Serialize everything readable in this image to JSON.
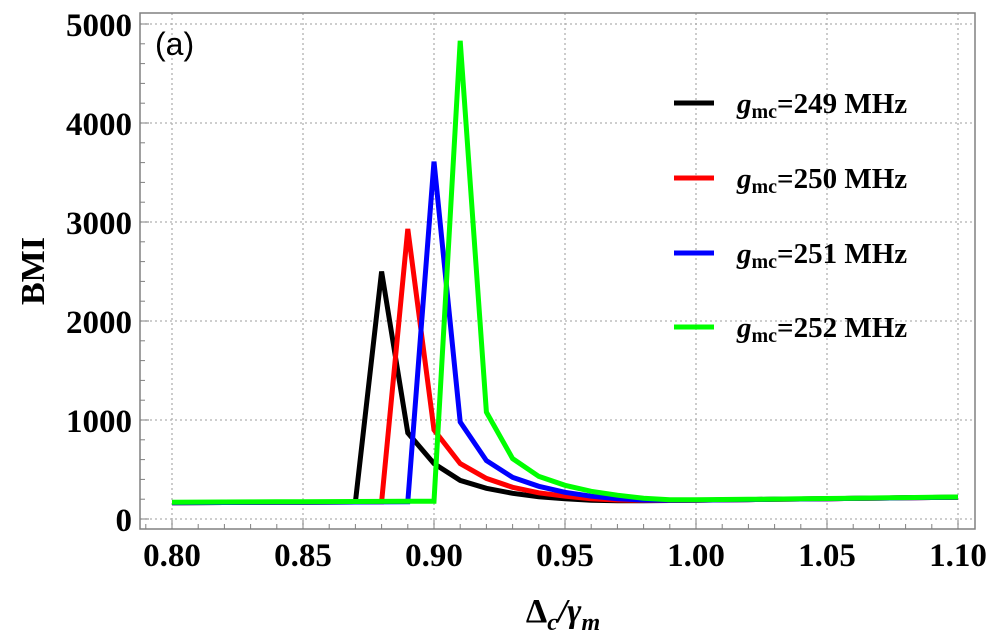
{
  "chart_data": {
    "type": "line",
    "title": "",
    "panel_label": "(a)",
    "xlabel": "Δc/γm",
    "xlabel_parts": {
      "main": "Δ",
      "sub1": "c",
      "slash": "/",
      "greek": "γ",
      "sub2": "m"
    },
    "ylabel": "BMI",
    "xlim": [
      0.785,
      1.105
    ],
    "ylim": [
      -50,
      5100
    ],
    "x_ticks": [
      0.8,
      0.85,
      0.9,
      0.95,
      1.0,
      1.05,
      1.1
    ],
    "x_tick_labels": [
      "0.80",
      "0.85",
      "0.90",
      "0.95",
      "1.00",
      "1.05",
      "1.10"
    ],
    "y_ticks": [
      0,
      1000,
      2000,
      3000,
      4000,
      5000
    ],
    "y_tick_labels": [
      "0",
      "1000",
      "2000",
      "3000",
      "4000",
      "5000"
    ],
    "grid": true,
    "legend_position": "upper right",
    "x": [
      0.8,
      0.81,
      0.82,
      0.83,
      0.84,
      0.85,
      0.86,
      0.87,
      0.88,
      0.89,
      0.9,
      0.91,
      0.92,
      0.93,
      0.94,
      0.95,
      0.96,
      0.97,
      0.98,
      0.99,
      1.0,
      1.01,
      1.02,
      1.03,
      1.04,
      1.05,
      1.06,
      1.07,
      1.08,
      1.09,
      1.1
    ],
    "series": [
      {
        "name": "gmc=249 MHz",
        "label_prefix": "g",
        "label_sub": "mc",
        "label_suffix": "=249 MHz",
        "color": "#000000",
        "values": [
          165,
          166,
          167,
          168,
          169,
          170,
          171,
          172,
          2500,
          870,
          560,
          390,
          310,
          260,
          225,
          205,
          190,
          185,
          185,
          187,
          190,
          193,
          196,
          199,
          202,
          205,
          208,
          211,
          214,
          217,
          220
        ]
      },
      {
        "name": "gmc=250 MHz",
        "label_prefix": "g",
        "label_sub": "mc",
        "label_suffix": "=250 MHz",
        "color": "#ff0000",
        "values": [
          165,
          166,
          167,
          168,
          169,
          170,
          171,
          172,
          173,
          2930,
          900,
          560,
          410,
          320,
          265,
          230,
          205,
          192,
          188,
          188,
          190,
          193,
          196,
          199,
          202,
          205,
          208,
          211,
          214,
          217,
          220
        ]
      },
      {
        "name": "gmc=251 MHz",
        "label_prefix": "g",
        "label_sub": "mc",
        "label_suffix": "=251 MHz",
        "color": "#0000ff",
        "values": [
          165,
          166,
          167,
          168,
          169,
          170,
          171,
          172,
          173,
          174,
          3610,
          980,
          590,
          420,
          330,
          270,
          230,
          205,
          192,
          190,
          191,
          193,
          196,
          199,
          202,
          205,
          208,
          211,
          214,
          217,
          220
        ]
      },
      {
        "name": "gmc=252 MHz",
        "label_prefix": "g",
        "label_sub": "mc",
        "label_suffix": "=252 MHz",
        "color": "#00ff00",
        "values": [
          170,
          171,
          172,
          173,
          174,
          175,
          176,
          177,
          178,
          179,
          180,
          4830,
          1080,
          610,
          430,
          340,
          280,
          240,
          210,
          195,
          195,
          197,
          199,
          201,
          204,
          207,
          210,
          213,
          216,
          219,
          222
        ]
      }
    ]
  }
}
